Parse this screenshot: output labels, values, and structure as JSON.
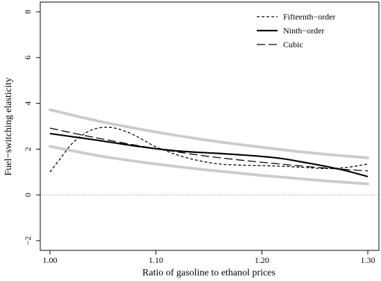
{
  "chart_data": {
    "type": "line",
    "xlabel": "Ratio of gasoline to ethanol prices",
    "ylabel": "Fuel−switching elasticity",
    "xlim": [
      1.0,
      1.3
    ],
    "ylim": [
      -2,
      8
    ],
    "x_ticks": [
      1.0,
      1.1,
      1.2,
      1.3
    ],
    "x_tick_labels": [
      "1.00",
      "1.10",
      "1.20",
      "1.30"
    ],
    "y_ticks": [
      -2,
      0,
      2,
      4,
      6,
      8
    ],
    "y_tick_labels": [
      "−2",
      "0",
      "2",
      "4",
      "6",
      "8"
    ],
    "grid": false,
    "legend_position": "top-right",
    "reference_line": {
      "y": 0,
      "style": "dotted"
    },
    "series": [
      {
        "name": "Fifteenth−order",
        "style": "dashed-short",
        "color": "#000000",
        "x": [
          1.0,
          1.01,
          1.02,
          1.03,
          1.04,
          1.05,
          1.06,
          1.07,
          1.08,
          1.09,
          1.1,
          1.12,
          1.14,
          1.16,
          1.18,
          1.2,
          1.22,
          1.24,
          1.26,
          1.28,
          1.3
        ],
        "y": [
          1.0,
          1.6,
          2.2,
          2.6,
          2.85,
          2.95,
          2.93,
          2.8,
          2.6,
          2.35,
          2.1,
          1.75,
          1.5,
          1.35,
          1.3,
          1.28,
          1.25,
          1.2,
          1.15,
          1.2,
          1.35
        ]
      },
      {
        "name": "Ninth−order",
        "style": "solid",
        "color": "#000000",
        "x": [
          1.0,
          1.02,
          1.04,
          1.06,
          1.08,
          1.1,
          1.12,
          1.14,
          1.16,
          1.18,
          1.2,
          1.22,
          1.24,
          1.26,
          1.28,
          1.3
        ],
        "y": [
          2.68,
          2.55,
          2.42,
          2.28,
          2.14,
          2.02,
          1.92,
          1.86,
          1.81,
          1.75,
          1.68,
          1.58,
          1.42,
          1.25,
          1.05,
          0.8
        ]
      },
      {
        "name": "Cubic",
        "style": "dashed-long",
        "color": "#000000",
        "x": [
          1.0,
          1.03,
          1.06,
          1.09,
          1.12,
          1.15,
          1.18,
          1.21,
          1.24,
          1.27,
          1.3
        ],
        "y": [
          2.92,
          2.62,
          2.35,
          2.1,
          1.88,
          1.68,
          1.52,
          1.38,
          1.25,
          1.14,
          1.05
        ]
      }
    ],
    "bands": [
      {
        "color": "#cccccc",
        "x": [
          1.0,
          1.05,
          1.1,
          1.15,
          1.2,
          1.25,
          1.3
        ],
        "y": [
          3.72,
          3.18,
          2.75,
          2.38,
          2.08,
          1.82,
          1.62
        ]
      },
      {
        "color": "#cccccc",
        "x": [
          1.0,
          1.05,
          1.1,
          1.15,
          1.2,
          1.25,
          1.3
        ],
        "y": [
          2.12,
          1.68,
          1.35,
          1.08,
          0.85,
          0.65,
          0.48
        ]
      }
    ]
  }
}
